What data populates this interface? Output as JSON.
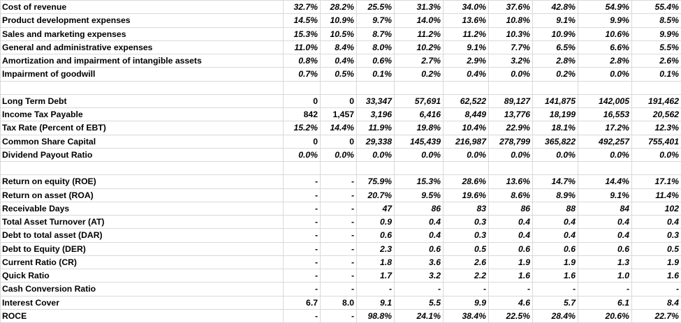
{
  "columns_count": 9,
  "rows": [
    {
      "label": "Cost of revenue",
      "values": [
        "32.7%",
        "28.2%",
        "25.5%",
        "31.3%",
        "34.0%",
        "37.6%",
        "42.8%",
        "54.9%",
        "55.4%"
      ]
    },
    {
      "label": "Product development expenses",
      "values": [
        "14.5%",
        "10.9%",
        "9.7%",
        "14.0%",
        "13.6%",
        "10.8%",
        "9.1%",
        "9.9%",
        "8.5%"
      ]
    },
    {
      "label": "Sales and marketing expenses",
      "values": [
        "15.3%",
        "10.5%",
        "8.7%",
        "11.2%",
        "11.2%",
        "10.3%",
        "10.9%",
        "10.6%",
        "9.9%"
      ]
    },
    {
      "label": "General and administrative expenses",
      "values": [
        "11.0%",
        "8.4%",
        "8.0%",
        "10.2%",
        "9.1%",
        "7.7%",
        "6.5%",
        "6.6%",
        "5.5%"
      ]
    },
    {
      "label": "Amortization and impairment of intangible assets",
      "values": [
        "0.8%",
        "0.4%",
        "0.6%",
        "2.7%",
        "2.9%",
        "3.2%",
        "2.8%",
        "2.8%",
        "2.6%"
      ]
    },
    {
      "label": "Impairment of goodwill",
      "values": [
        "0.7%",
        "0.5%",
        "0.1%",
        "0.2%",
        "0.4%",
        "0.0%",
        "0.2%",
        "0.0%",
        "0.1%"
      ]
    },
    {
      "label": "",
      "values": [
        "",
        "",
        "",
        "",
        "",
        "",
        "",
        "",
        ""
      ]
    },
    {
      "label": "Long Term Debt",
      "values": [
        "0",
        "0",
        "33,347",
        "57,691",
        "62,522",
        "89,127",
        "141,875",
        "142,005",
        "191,462"
      ]
    },
    {
      "label": "Income Tax Payable",
      "values": [
        "842",
        "1,457",
        "3,196",
        "6,416",
        "8,449",
        "13,776",
        "18,199",
        "16,553",
        "20,562"
      ]
    },
    {
      "label": "Tax Rate (Percent of EBT)",
      "values": [
        "15.2%",
        "14.4%",
        "11.9%",
        "19.8%",
        "10.4%",
        "22.9%",
        "18.1%",
        "17.2%",
        "12.3%"
      ]
    },
    {
      "label": "Common Share Capital",
      "values": [
        "0",
        "0",
        "29,338",
        "145,439",
        "216,987",
        "278,799",
        "365,822",
        "492,257",
        "755,401"
      ]
    },
    {
      "label": "Dividend Payout Ratio",
      "values": [
        "0.0%",
        "0.0%",
        "0.0%",
        "0.0%",
        "0.0%",
        "0.0%",
        "0.0%",
        "0.0%",
        "0.0%"
      ]
    },
    {
      "label": "",
      "values": [
        "",
        "",
        "",
        "",
        "",
        "",
        "",
        "",
        ""
      ]
    },
    {
      "label": "Return on equity (ROE)",
      "values": [
        "-",
        "-",
        "75.9%",
        "15.3%",
        "28.6%",
        "13.6%",
        "14.7%",
        "14.4%",
        "17.1%"
      ]
    },
    {
      "label": "Return on asset (ROA)",
      "values": [
        "-",
        "-",
        "20.7%",
        "9.5%",
        "19.6%",
        "8.6%",
        "8.9%",
        "9.1%",
        "11.4%"
      ]
    },
    {
      "label": "Receivable Days",
      "values": [
        "-",
        "-",
        "47",
        "86",
        "83",
        "86",
        "88",
        "84",
        "102"
      ]
    },
    {
      "label": "Total Asset Turnover (AT)",
      "values": [
        "-",
        "-",
        "0.9",
        "0.4",
        "0.3",
        "0.4",
        "0.4",
        "0.4",
        "0.4"
      ]
    },
    {
      "label": "Debt to total asset (DAR)",
      "values": [
        "-",
        "-",
        "0.6",
        "0.4",
        "0.3",
        "0.4",
        "0.4",
        "0.4",
        "0.3"
      ]
    },
    {
      "label": "Debt to Equity (DER)",
      "values": [
        "-",
        "-",
        "2.3",
        "0.6",
        "0.5",
        "0.6",
        "0.6",
        "0.6",
        "0.5"
      ]
    },
    {
      "label": "Current Ratio (CR)",
      "values": [
        "-",
        "-",
        "1.8",
        "3.6",
        "2.6",
        "1.9",
        "1.9",
        "1.3",
        "1.9"
      ]
    },
    {
      "label": "Quick Ratio",
      "values": [
        "-",
        "-",
        "1.7",
        "3.2",
        "2.2",
        "1.6",
        "1.6",
        "1.0",
        "1.6"
      ]
    },
    {
      "label": "Cash Conversion Ratio",
      "values": [
        "-",
        "-",
        "-",
        "-",
        "-",
        "-",
        "-",
        "-",
        "-"
      ]
    },
    {
      "label": "Interest Cover",
      "values": [
        "6.7",
        "8.0",
        "9.1",
        "5.5",
        "9.9",
        "4.6",
        "5.7",
        "6.1",
        "8.4"
      ]
    },
    {
      "label": "ROCE",
      "values": [
        "-",
        "-",
        "98.8%",
        "24.1%",
        "38.4%",
        "22.5%",
        "28.4%",
        "20.6%",
        "22.7%"
      ]
    }
  ]
}
